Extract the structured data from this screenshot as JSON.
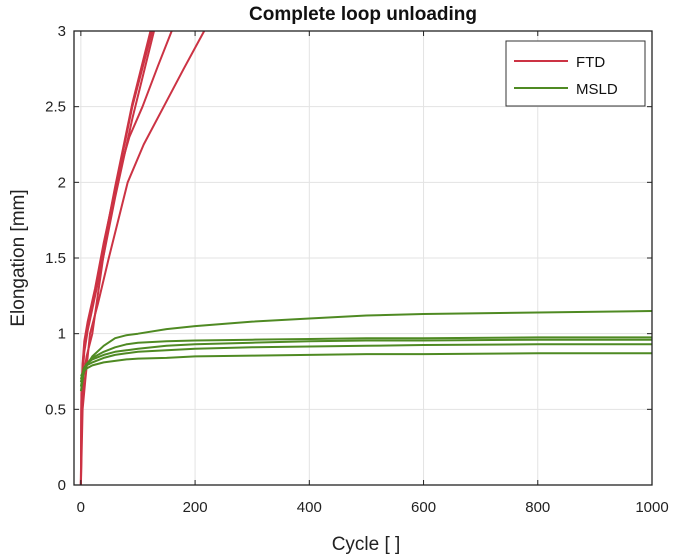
{
  "chart_data": {
    "type": "line",
    "title": "Complete loop unloading",
    "xlabel": "Cycle [ ]",
    "ylabel": "Elongation [mm]",
    "xlim": [
      -12,
      1000
    ],
    "ylim": [
      0,
      3
    ],
    "xticks": [
      0,
      200,
      400,
      600,
      800,
      1000
    ],
    "yticks": [
      0,
      0.5,
      1,
      1.5,
      2,
      2.5,
      3
    ],
    "xtick_labels": [
      "0",
      "200",
      "400",
      "600",
      "800",
      "1000"
    ],
    "ytick_labels": [
      "0",
      "0.5",
      "1",
      "1.5",
      "2",
      "2.5",
      "3"
    ],
    "grid": true,
    "legend_position": "top-right",
    "colors": {
      "FTD": "#cc3344",
      "MSLD": "#4f8a23"
    },
    "legend": [
      "FTD",
      "MSLD"
    ],
    "series": [
      {
        "name": "FTD",
        "x": [
          0,
          1,
          3,
          6,
          12,
          25,
          40,
          60,
          90,
          125
        ],
        "y": [
          0,
          0.6,
          0.8,
          0.95,
          1.08,
          1.3,
          1.6,
          1.95,
          2.5,
          3.0
        ]
      },
      {
        "name": "FTD",
        "x": [
          0,
          1,
          3,
          6,
          12,
          25,
          40,
          60,
          90,
          122
        ],
        "y": [
          0,
          0.55,
          0.78,
          0.92,
          1.05,
          1.28,
          1.58,
          1.97,
          2.52,
          3.0
        ]
      },
      {
        "name": "FTD",
        "x": [
          0,
          1,
          3,
          6,
          12,
          25,
          40,
          60,
          90,
          128
        ],
        "y": [
          0,
          0.5,
          0.72,
          0.88,
          1.02,
          1.25,
          1.52,
          1.9,
          2.42,
          3.0
        ]
      },
      {
        "name": "FTD",
        "x": [
          0,
          2,
          5,
          10,
          20,
          39,
          62,
          85,
          108,
          135,
          159
        ],
        "y": [
          0,
          0.55,
          0.72,
          0.85,
          1.0,
          1.5,
          2.0,
          2.3,
          2.5,
          2.77,
          3.0
        ]
      },
      {
        "name": "FTD",
        "x": [
          0,
          3,
          8,
          16,
          30,
          49,
          82,
          110,
          145,
          180,
          216
        ],
        "y": [
          0,
          0.5,
          0.7,
          1.0,
          1.2,
          1.5,
          2.0,
          2.25,
          2.5,
          2.75,
          3.0
        ]
      },
      {
        "name": "MSLD",
        "x": [
          0,
          5,
          10,
          20,
          40,
          60,
          80,
          100,
          150,
          200,
          300,
          400,
          500,
          600,
          800,
          1000
        ],
        "y": [
          0.62,
          0.74,
          0.79,
          0.85,
          0.92,
          0.97,
          0.99,
          1.0,
          1.03,
          1.05,
          1.08,
          1.1,
          1.12,
          1.13,
          1.14,
          1.15
        ]
      },
      {
        "name": "MSLD",
        "x": [
          0,
          5,
          10,
          20,
          40,
          60,
          80,
          100,
          150,
          200,
          300,
          400,
          500,
          600,
          800,
          1000
        ],
        "y": [
          0.65,
          0.76,
          0.8,
          0.84,
          0.88,
          0.91,
          0.93,
          0.94,
          0.95,
          0.955,
          0.96,
          0.965,
          0.97,
          0.97,
          0.975,
          0.975
        ]
      },
      {
        "name": "MSLD",
        "x": [
          0,
          5,
          10,
          20,
          40,
          60,
          80,
          100,
          150,
          200,
          300,
          400,
          500,
          600,
          800,
          1000
        ],
        "y": [
          0.68,
          0.77,
          0.8,
          0.83,
          0.86,
          0.88,
          0.89,
          0.9,
          0.92,
          0.93,
          0.94,
          0.95,
          0.955,
          0.955,
          0.96,
          0.96
        ]
      },
      {
        "name": "MSLD",
        "x": [
          0,
          5,
          10,
          20,
          40,
          60,
          80,
          100,
          150,
          200,
          300,
          400,
          500,
          600,
          800,
          1000
        ],
        "y": [
          0.7,
          0.76,
          0.79,
          0.81,
          0.84,
          0.86,
          0.87,
          0.88,
          0.89,
          0.9,
          0.91,
          0.915,
          0.92,
          0.925,
          0.93,
          0.93
        ]
      },
      {
        "name": "MSLD",
        "x": [
          0,
          5,
          10,
          20,
          40,
          60,
          80,
          100,
          150,
          200,
          300,
          400,
          500,
          600,
          800,
          1000
        ],
        "y": [
          0.72,
          0.75,
          0.77,
          0.79,
          0.81,
          0.82,
          0.83,
          0.835,
          0.84,
          0.85,
          0.855,
          0.86,
          0.865,
          0.865,
          0.87,
          0.87
        ]
      }
    ]
  }
}
